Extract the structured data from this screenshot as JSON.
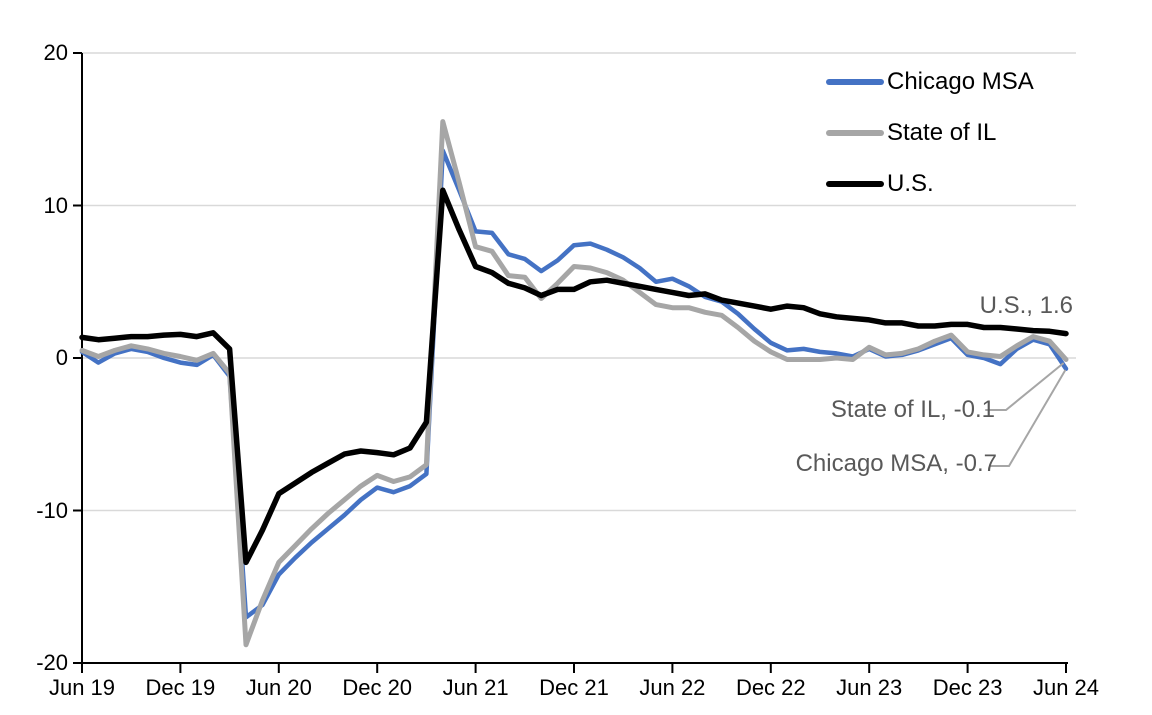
{
  "chart_data": {
    "type": "line",
    "title": "",
    "grid": true,
    "legend_position": "top-right",
    "y_axis": {
      "min": -20,
      "max": 20,
      "tick_values": [
        20,
        10,
        0,
        -10,
        -20
      ],
      "tick_labels": [
        "20",
        "10",
        "0",
        "-10",
        "-20"
      ]
    },
    "x_axis": {
      "monthly_points": 61,
      "start_label": "Jun 19",
      "end_label": "Jun 24",
      "tick_month_indices": [
        0,
        6,
        12,
        18,
        24,
        30,
        36,
        42,
        48,
        54,
        60
      ],
      "tick_labels": [
        "Jun 19",
        "Dec 19",
        "Jun 20",
        "Dec 20",
        "Jun 21",
        "Dec 21",
        "Jun 22",
        "Dec 22",
        "Jun 23",
        "Dec 23",
        "Jun 24"
      ]
    },
    "series": [
      {
        "name": "Chicago MSA",
        "color": "#4472C4",
        "stroke_width": 4.5,
        "values": [
          0.4,
          -0.3,
          0.3,
          0.6,
          0.4,
          0.0,
          -0.3,
          -0.45,
          0.2,
          -1.2,
          -17.0,
          -16.2,
          -14.2,
          -13.1,
          -12.1,
          -11.2,
          -10.3,
          -9.3,
          -8.5,
          -8.8,
          -8.4,
          -7.6,
          13.6,
          11.0,
          8.3,
          8.2,
          6.8,
          6.5,
          5.7,
          6.4,
          7.4,
          7.5,
          7.1,
          6.6,
          5.9,
          5.0,
          5.2,
          4.7,
          4.0,
          3.7,
          2.9,
          1.9,
          1.0,
          0.5,
          0.6,
          0.4,
          0.3,
          0.1,
          0.6,
          0.1,
          0.2,
          0.5,
          0.9,
          1.3,
          0.2,
          0.0,
          -0.4,
          0.6,
          1.2,
          0.9,
          -0.7
        ]
      },
      {
        "name": "State of IL",
        "color": "#A6A6A6",
        "stroke_width": 5,
        "values": [
          0.5,
          0.1,
          0.5,
          0.8,
          0.6,
          0.3,
          0.1,
          -0.15,
          0.3,
          -1.0,
          -18.8,
          -15.9,
          -13.4,
          -12.3,
          -11.2,
          -10.2,
          -9.3,
          -8.4,
          -7.7,
          -8.1,
          -7.8,
          -7.0,
          15.5,
          11.5,
          7.3,
          7.0,
          5.4,
          5.3,
          3.9,
          4.9,
          6.0,
          5.9,
          5.6,
          5.1,
          4.3,
          3.5,
          3.3,
          3.3,
          3.0,
          2.8,
          2.0,
          1.1,
          0.4,
          -0.1,
          -0.1,
          -0.1,
          0.0,
          -0.1,
          0.7,
          0.2,
          0.3,
          0.6,
          1.1,
          1.5,
          0.4,
          0.2,
          0.1,
          0.8,
          1.4,
          1.1,
          -0.1
        ]
      },
      {
        "name": "U.S.",
        "color": "#000000",
        "stroke_width": 5.5,
        "values": [
          1.35,
          1.2,
          1.3,
          1.4,
          1.4,
          1.5,
          1.55,
          1.4,
          1.65,
          0.6,
          -13.4,
          -11.3,
          -8.9,
          -8.2,
          -7.5,
          -6.9,
          -6.3,
          -6.1,
          -6.2,
          -6.35,
          -5.9,
          -4.2,
          11.0,
          8.4,
          6.0,
          5.6,
          4.9,
          4.6,
          4.1,
          4.5,
          4.5,
          5.0,
          5.1,
          4.9,
          4.7,
          4.5,
          4.3,
          4.1,
          4.2,
          3.8,
          3.6,
          3.4,
          3.2,
          3.4,
          3.3,
          2.9,
          2.7,
          2.6,
          2.5,
          2.3,
          2.3,
          2.1,
          2.1,
          2.2,
          2.2,
          2.0,
          2.0,
          1.9,
          1.8,
          1.75,
          1.6
        ]
      }
    ],
    "annotations": [
      {
        "target": "U.S.",
        "label": "U.S., 1.6",
        "value": 1.6
      },
      {
        "target": "State of IL",
        "label": "State of IL, -0.1",
        "value": -0.1
      },
      {
        "target": "Chicago MSA",
        "label": "Chicago MSA, -0.7",
        "value": -0.7
      }
    ],
    "colors": {
      "chicago_msa": "#4472C4",
      "state_of_il": "#A6A6A6",
      "us": "#000000",
      "gridline": "#D9D9D9",
      "axis": "#000000",
      "annotation_text": "#595959",
      "leader_line": "#A6A6A6"
    }
  }
}
